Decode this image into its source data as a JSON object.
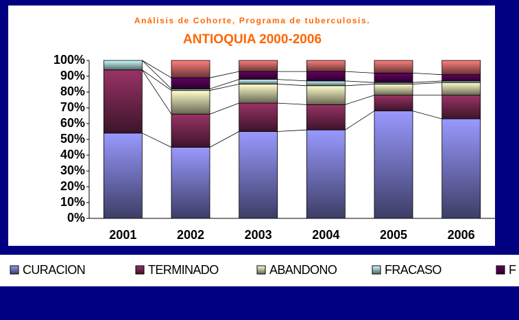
{
  "chart_data": {
    "type": "stacked-bar",
    "title": "Análisis de Cohorte, Programa de tuberculosis.",
    "subtitle": "ANTIOQUIA  2000-2006",
    "categories": [
      "2001",
      "2002",
      "2003",
      "2004",
      "2005",
      "2006"
    ],
    "series": [
      {
        "name": "CURACION",
        "color": "#9999ff",
        "values": [
          54,
          45,
          55,
          56,
          68,
          63
        ]
      },
      {
        "name": "TERMINADO",
        "color": "#993366",
        "values": [
          40,
          21,
          18,
          16,
          10,
          15
        ]
      },
      {
        "name": "ABANDONO",
        "color": "#ffffcc",
        "values": [
          0,
          15,
          12,
          12,
          7,
          8
        ]
      },
      {
        "name": "FRACASO",
        "color": "#ccffff",
        "values": [
          6,
          1,
          3,
          3,
          1,
          1
        ]
      },
      {
        "name": "F",
        "color": "#660066",
        "values": [
          0,
          7,
          5,
          6,
          6,
          4
        ]
      },
      {
        "color": "#ff8080",
        "values": [
          0,
          11,
          7,
          7,
          8,
          9
        ]
      }
    ],
    "ylim": [
      0,
      100
    ],
    "yticks": [
      {
        "value": 0,
        "label": "0%"
      },
      {
        "value": 10,
        "label": "10%"
      },
      {
        "value": 20,
        "label": "20%"
      },
      {
        "value": 30,
        "label": "30%"
      },
      {
        "value": 40,
        "label": "40%"
      },
      {
        "value": 50,
        "label": "50%"
      },
      {
        "value": 60,
        "label": "60%"
      },
      {
        "value": 70,
        "label": "70%"
      },
      {
        "value": 80,
        "label": "80%"
      },
      {
        "value": 90,
        "label": "90%"
      },
      {
        "value": 100,
        "label": "100%"
      }
    ],
    "series_lines": true,
    "legend": "bottom"
  }
}
